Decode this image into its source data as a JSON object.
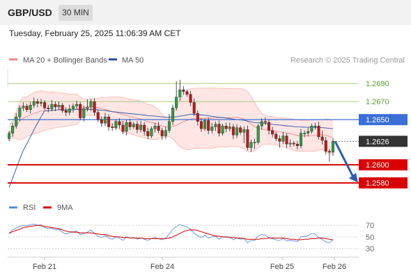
{
  "header": {
    "symbol": "GBP/USD",
    "timeframe": "30 MIN",
    "datetime": "Tuesday, February 25, 2025 11:06:39 AM CET"
  },
  "legend": {
    "bb_label": "MA 20 + Bollinger Bands",
    "ma50_label": "MA 50",
    "source": "Research © 2025 Trading Central",
    "rsi_label": "RSI",
    "rsi_ma_label": "9MA"
  },
  "colors": {
    "up": "#2e9e44",
    "down": "#c01818",
    "bb": "#f08a8a",
    "bbFill": "#fde3e1",
    "ma50": "#2a50a0",
    "support": "#d80000",
    "resistance": "#a8c87a",
    "pivot": "#3a6fd8",
    "current": "#333333",
    "arrow": "#2a5db8",
    "rsi": "#5b8ce0",
    "rsiMa": "#d80000"
  },
  "chart_data": [
    {
      "type": "candlestick",
      "y_range": [
        1.2564,
        1.2707
      ],
      "x_labels": [
        "Feb 21",
        "Feb 24",
        "Feb 25",
        "Feb 26"
      ],
      "price_levels": [
        {
          "label": "1.2690",
          "value": 1.269,
          "kind": "resistance"
        },
        {
          "label": "1.2670",
          "value": 1.267,
          "kind": "resistance"
        },
        {
          "label": "1.2650",
          "value": 1.265,
          "kind": "pivot"
        },
        {
          "label": "1.2626",
          "value": 1.2626,
          "kind": "current"
        },
        {
          "label": "1.2600",
          "value": 1.26,
          "kind": "support"
        },
        {
          "label": "1.2580",
          "value": 1.258,
          "kind": "support"
        }
      ],
      "series_closes": [
        1.2635,
        1.2643,
        1.2653,
        1.2663,
        1.2665,
        1.2661,
        1.2666,
        1.267,
        1.2668,
        1.2669,
        1.2663,
        1.2662,
        1.2667,
        1.2664,
        1.2666,
        1.266,
        1.2658,
        1.2662,
        1.2665,
        1.2667,
        1.2652,
        1.2662,
        1.2664,
        1.267,
        1.2658,
        1.265,
        1.2646,
        1.2653,
        1.2642,
        1.2641,
        1.2648,
        1.2644,
        1.2637,
        1.2647,
        1.2642,
        1.2645,
        1.2639,
        1.2644,
        1.2637,
        1.2632,
        1.264,
        1.2643,
        1.2638,
        1.2632,
        1.2638,
        1.2648,
        1.2663,
        1.2675,
        1.2683,
        1.2681,
        1.2678,
        1.2669,
        1.2657,
        1.2648,
        1.264,
        1.2649,
        1.2638,
        1.2642,
        1.2645,
        1.2635,
        1.2643,
        1.264,
        1.2642,
        1.2633,
        1.2641,
        1.2636,
        1.2639,
        1.2619,
        1.2625,
        1.2625,
        1.2643,
        1.2648,
        1.2647,
        1.2638,
        1.2634,
        1.2629,
        1.2626,
        1.2632,
        1.2623,
        1.2624,
        1.2623,
        1.2621,
        1.2635,
        1.2635,
        1.2637,
        1.2643,
        1.2643,
        1.2631,
        1.2627,
        1.2615,
        1.2614,
        1.2626
      ],
      "series": [
        {
          "name": "MA 20 + Bollinger Bands"
        },
        {
          "name": "MA 50"
        }
      ]
    },
    {
      "type": "line",
      "y_ticks": [
        70,
        50,
        30
      ],
      "y_range": [
        20,
        82
      ],
      "series": [
        {
          "name": "RSI",
          "values": [
            56,
            62,
            65,
            68,
            70,
            69,
            71,
            72,
            70,
            71,
            66,
            64,
            65,
            62,
            63,
            58,
            55,
            57,
            59,
            60,
            54,
            56,
            58,
            62,
            56,
            51,
            49,
            52,
            48,
            46,
            50,
            48,
            44,
            50,
            48,
            49,
            46,
            48,
            46,
            44,
            47,
            49,
            47,
            45,
            48,
            55,
            63,
            68,
            71,
            69,
            67,
            63,
            56,
            52,
            49,
            53,
            48,
            50,
            51,
            46,
            50,
            49,
            50,
            45,
            48,
            46,
            47,
            40,
            44,
            44,
            52,
            54,
            53,
            49,
            47,
            45,
            44,
            47,
            43,
            44,
            43,
            42,
            50,
            51,
            52,
            56,
            55,
            48,
            46,
            41,
            40,
            45
          ]
        },
        {
          "name": "9MA",
          "values": [
            56,
            59,
            61,
            63,
            66,
            67,
            68,
            69,
            70,
            69,
            68,
            67,
            66,
            65,
            64,
            62,
            60,
            59,
            58,
            58,
            57,
            57,
            57,
            57,
            56,
            55,
            54,
            54,
            52,
            51,
            50,
            50,
            49,
            49,
            48,
            48,
            48,
            48,
            47,
            47,
            47,
            47,
            47,
            47,
            47,
            48,
            50,
            53,
            56,
            59,
            61,
            62,
            62,
            61,
            59,
            57,
            55,
            53,
            52,
            51,
            50,
            50,
            49,
            49,
            48,
            48,
            47,
            46,
            46,
            46,
            46,
            47,
            47,
            48,
            48,
            48,
            48,
            48,
            47,
            46,
            46,
            45,
            45,
            46,
            46,
            47,
            47,
            48,
            48,
            47,
            46,
            45
          ]
        }
      ]
    }
  ]
}
